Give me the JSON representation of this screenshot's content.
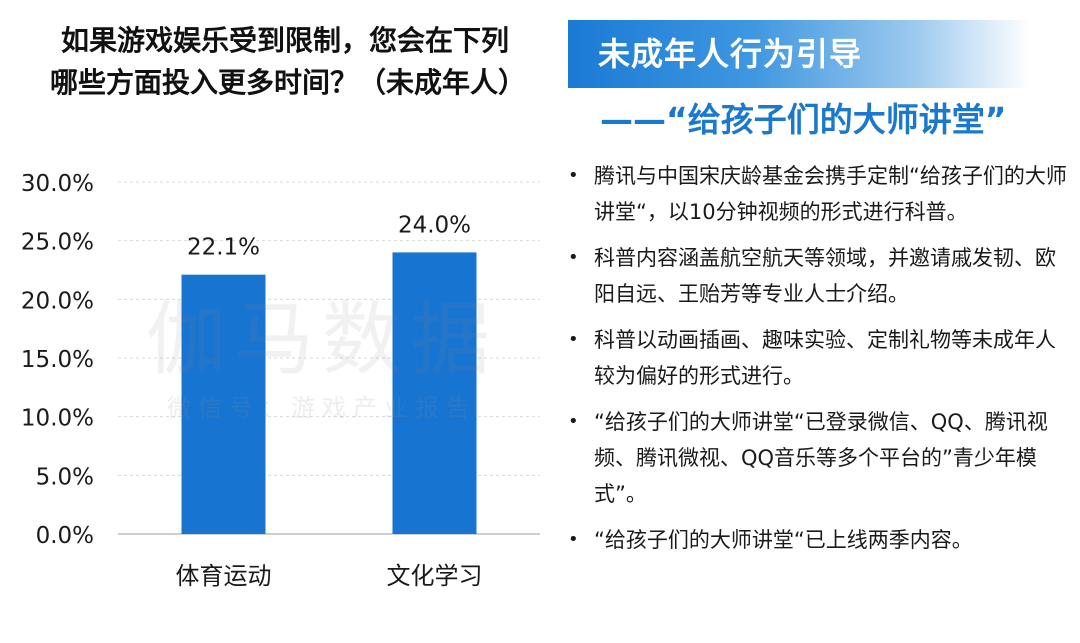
{
  "chart": {
    "title": "如果游戏娱乐受到限制，您会在下列哪些方面投入更多时间？（未成年人）"
  },
  "chart_data": {
    "type": "bar",
    "title": "如果游戏娱乐受到限制，您会在下列哪些方面投入更多时间？（未成年人）",
    "categories": [
      "体育运动",
      "文化学习"
    ],
    "values": [
      22.1,
      24.0
    ],
    "data_labels": [
      "22.1%",
      "24.0%"
    ],
    "y_ticks": [
      "0.0%",
      "5.0%",
      "10.0%",
      "15.0%",
      "20.0%",
      "25.0%",
      "30.0%"
    ],
    "y_tick_values": [
      0,
      5,
      10,
      15,
      20,
      25,
      30
    ],
    "ylim": [
      0,
      30
    ],
    "grid": true,
    "legend": "none",
    "bar_color": "#1774d1",
    "grid_color": "#d9d9d9"
  },
  "watermark": {
    "main": "伽马数据",
    "sub": "微信号：游戏产业报告"
  },
  "panel": {
    "banner_title": "未成年人行为引导",
    "subtitle": "——“给孩子们的大师讲堂”",
    "bullet_symbol": "•",
    "bullets": [
      "腾讯与中国宋庆龄基金会携手定制“给孩子们的大师讲堂“，以10分钟视频的形式进行科普。",
      "科普内容涵盖航空航天等领域，并邀请戚发韧、欧阳自远、王贻芳等专业人士介绍。",
      "科普以动画插画、趣味实验、定制礼物等未成年人较为偏好的形式进行。",
      "“给孩子们的大师讲堂“已登录微信、QQ、腾讯视频、腾讯微视、QQ音乐等多个平台的”青少年模式”。",
      "“给孩子们的大师讲堂“已上线两季内容。"
    ]
  },
  "colors": {
    "accent": "#1a78cf",
    "bar": "#1774d1"
  }
}
